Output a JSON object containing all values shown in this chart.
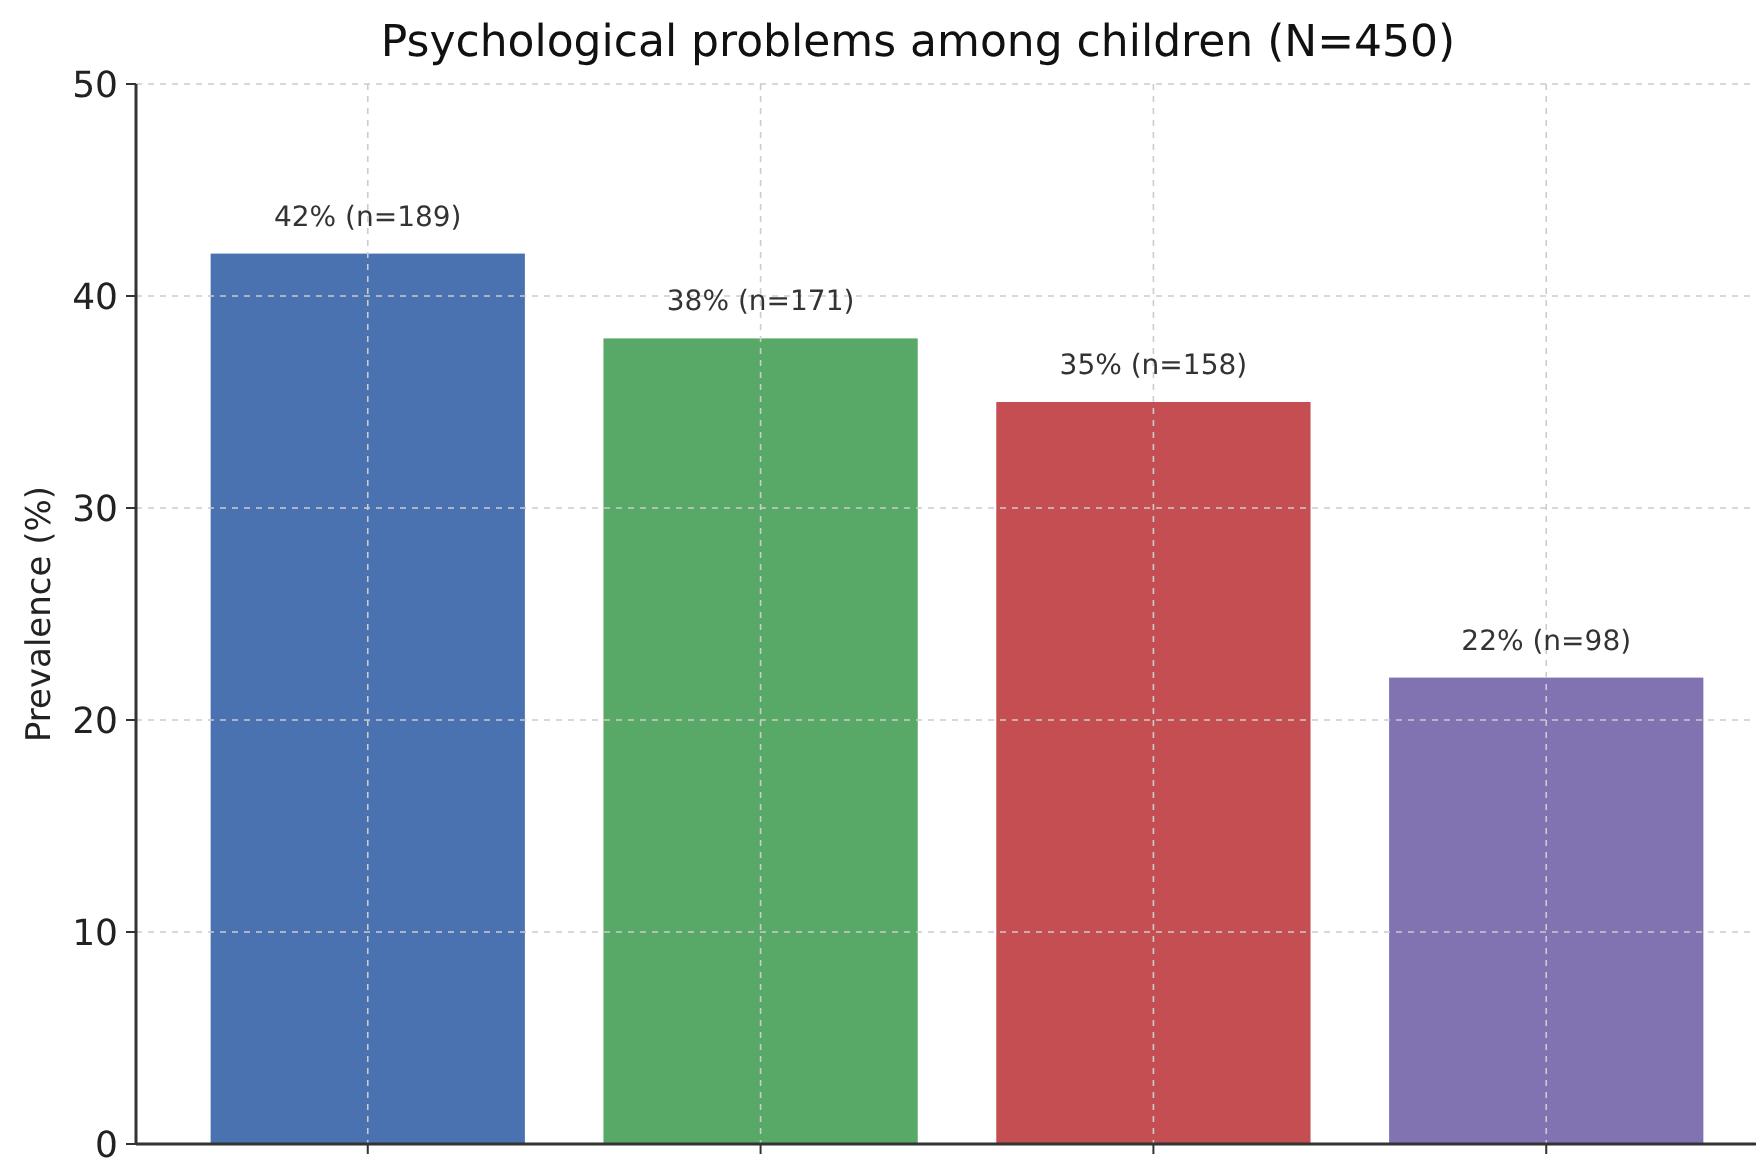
{
  "chart_data": {
    "type": "bar",
    "title": "Psychological problems among children (N=450)",
    "ylabel": "Prevalence (%)",
    "categories": [
      null,
      null,
      null,
      null
    ],
    "values": [
      42,
      38,
      35,
      22
    ],
    "colors": [
      "#4a72b0",
      "#58a868",
      "#c44e52",
      "#8172b2"
    ],
    "value_labels": [
      "42% (n=189)",
      "38% (n=171)",
      "35% (n=158)",
      "22% (n=98)"
    ],
    "ylim": [
      0,
      50
    ],
    "yticks": [
      0,
      10,
      20,
      30,
      40,
      50
    ],
    "grid": true
  }
}
